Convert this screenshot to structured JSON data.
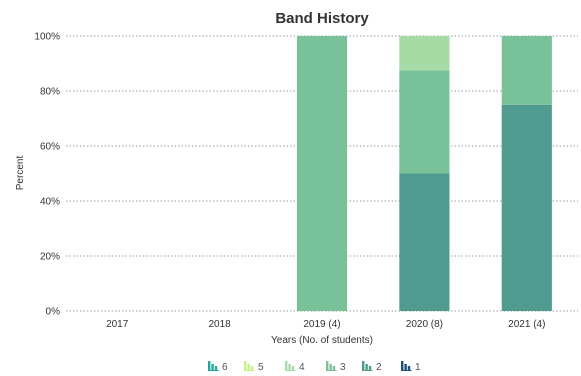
{
  "chart_data": {
    "type": "bar",
    "stacked": true,
    "title": "Band History",
    "xlabel": "Years (No. of students)",
    "ylabel": "Percent",
    "ylim": [
      0,
      100
    ],
    "yticks": [
      "0%",
      "20%",
      "40%",
      "60%",
      "80%",
      "100%"
    ],
    "grid": true,
    "legend_position": "bottom",
    "categories": [
      "2017",
      "2018",
      "2019 (4)",
      "2020 (8)",
      "2021 (4)"
    ],
    "series": [
      {
        "name": "6",
        "values": [
          0,
          0,
          0,
          50,
          75
        ],
        "color": "#4f9b8f"
      },
      {
        "name": "5",
        "values": [
          0,
          0,
          0,
          0,
          0
        ],
        "color": "#c8eba2"
      },
      {
        "name": "4",
        "values": [
          0,
          0,
          0,
          0,
          0
        ],
        "color": "#a6d8a0"
      },
      {
        "name": "3",
        "values": [
          0,
          0,
          100,
          37.5,
          25
        ],
        "color": "#78c199"
      },
      {
        "name": "2",
        "values": [
          0,
          0,
          0,
          12.5,
          0
        ],
        "color": "#a6dba6"
      },
      {
        "name": "1",
        "values": [
          0,
          0,
          0,
          0,
          0
        ],
        "color": "#1f4e79"
      }
    ],
    "legend_order": [
      {
        "name": "6",
        "color": "#26a69a"
      },
      {
        "name": "5",
        "color": "#c5f08a"
      },
      {
        "name": "4",
        "color": "#a6dba6"
      },
      {
        "name": "3",
        "color": "#78c199"
      },
      {
        "name": "2",
        "color": "#4f9b8f"
      },
      {
        "name": "1",
        "color": "#1f4e79"
      }
    ]
  }
}
